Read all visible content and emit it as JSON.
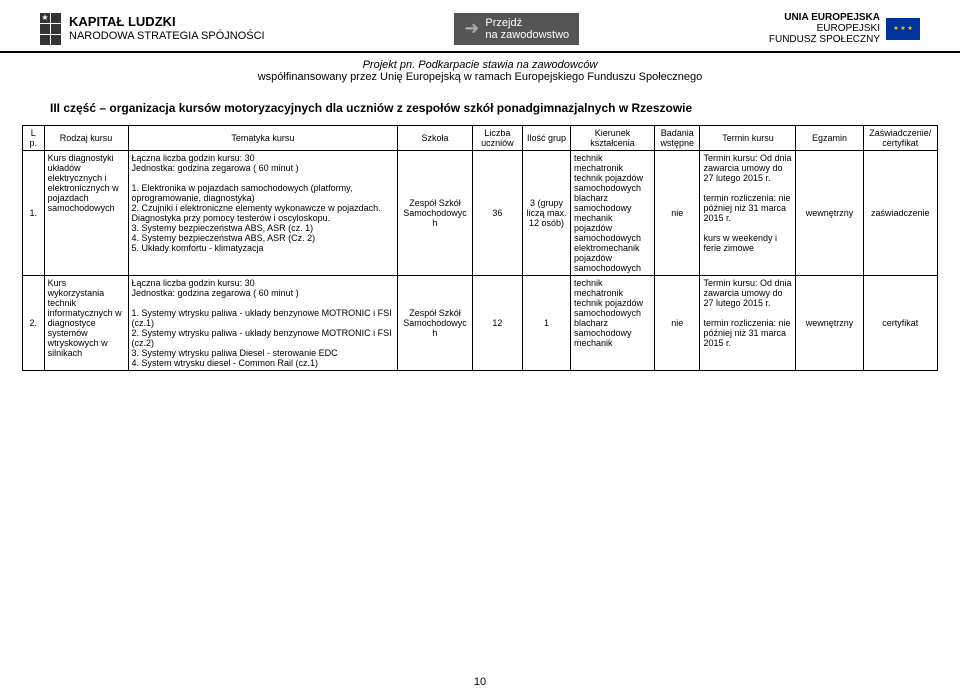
{
  "header": {
    "left_logo": {
      "line1": "KAPITAŁ LUDZKI",
      "line2": "NARODOWA STRATEGIA SPÓJNOŚCI"
    },
    "center_logo": {
      "line1": "Przejdź",
      "line2": "na zawodowstwo"
    },
    "right_logo": {
      "line1": "UNIA EUROPEJSKA",
      "line2": "EUROPEJSKI",
      "line3": "FUNDUSZ SPOŁECZNY",
      "stars": "★ ★ ★"
    }
  },
  "subheader": {
    "line1": "Projekt pn. Podkarpacie stawia na zawodowców",
    "line2": "współfinansowany przez Unię Europejską w ramach Europejskiego Funduszu Społecznego"
  },
  "section_title": "III część – organizacja kursów motoryzacyjnych dla uczniów z zespołów szkół ponadgimnazjalnych w Rzeszowie",
  "columns": [
    "L p.",
    "Rodzaj kursu",
    "Tematyka kursu",
    "Szkoła",
    "Liczba uczniów",
    "Ilość grup",
    "Kierunek kształcenia",
    "Badania wstępne",
    "Termin kursu",
    "Egzamin",
    "Zaświadczenie/ certyfikat"
  ],
  "rows": [
    {
      "lp": "1.",
      "rodzaj": "Kurs diagnostyki układów elektrycznych i elektronicznych w pojazdach samochodowych",
      "tematyka": "Łączna liczba godzin kursu: 30\nJednostka: godzina zegarowa ( 60 minut )\n\n1. Elektronika w pojazdach samochodowych (platformy, oprogramowanie, diagnostyka)\n2. Czujniki i elektroniczne elementy wykonawcze w pojazdach. Diagnostyka przy pomocy testerów i oscyloskopu.\n3. Systemy bezpieczeństwa ABS, ASR (cz. 1)\n4. Systemy bezpieczeństwa ABS, ASR (Cz. 2)\n5. Układy komfortu - klimatyzacja",
      "szkola": "Zespół Szkół Samochodowych",
      "liczba_uczniow": "36",
      "ilosc_grup": "3 (grupy liczą max. 12 osób)",
      "kierunek": "technik mechatronik technik pojazdów samochodowych blacharz samochodowy mechanik pojazdów samochodowych elektromechanik pojazdów samochodowych",
      "badania": "nie",
      "termin": "Termin kursu: Od dnia zawarcia umowy do 27 lutego 2015 r.\n\ntermin rozliczenia: nie później niż 31 marca 2015 r.\n\nkurs w weekendy i ferie zimowe",
      "egzamin": "wewnętrzny",
      "zaswiadczenie": "zaświadczenie"
    },
    {
      "lp": "2.",
      "rodzaj": "Kurs wykorzystania technik informatycznych w diagnostyce systemów wtryskowych w silnikach",
      "tematyka": "Łączna liczba godzin kursu: 30\nJednostka: godzina zegarowa ( 60 minut )\n\n1. Systemy wtrysku paliwa - układy benzynowe MOTRONIC i FSI (cz.1)\n2. Systemy wtrysku paliwa - układy benzynowe MOTRONIC i FSI (cz.2)\n3. Systemy wtrysku paliwa Diesel - sterowanie EDC\n4. System wtrysku diesel - Common Rail (cz.1)",
      "szkola": "Zespół Szkół Samochodowych",
      "liczba_uczniow": "12",
      "ilosc_grup": "1",
      "kierunek": "technik mechatronik technik pojazdów samochodowych blacharz samochodowy mechanik",
      "badania": "nie",
      "termin": "Termin kursu: Od dnia zawarcia umowy do 27 lutego 2015 r.\n\ntermin rozliczenia: nie później niż 31 marca 2015 r.",
      "egzamin": "wewnętrzny",
      "zaswiadczenie": "certyfikat"
    }
  ],
  "page_number": "10"
}
